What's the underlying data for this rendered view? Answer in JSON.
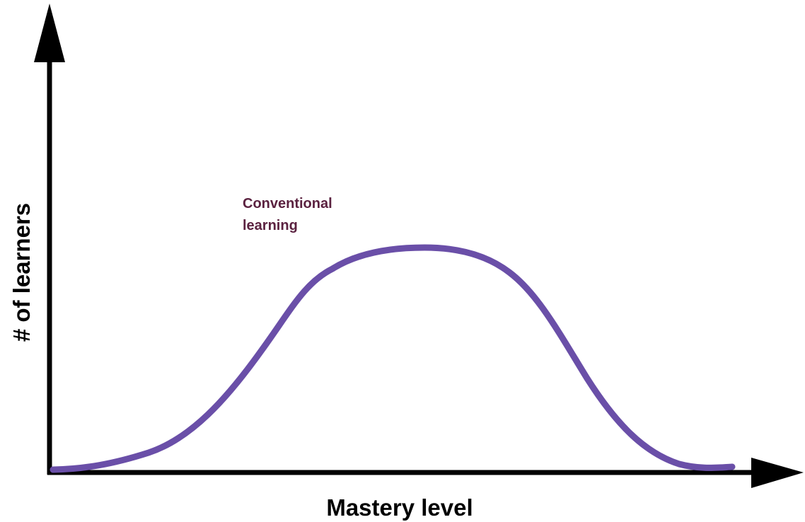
{
  "diagram": {
    "y_axis_label": "# of learners",
    "x_axis_label": "Mastery level",
    "curve_label": [
      "Conventional",
      "learning"
    ]
  }
}
